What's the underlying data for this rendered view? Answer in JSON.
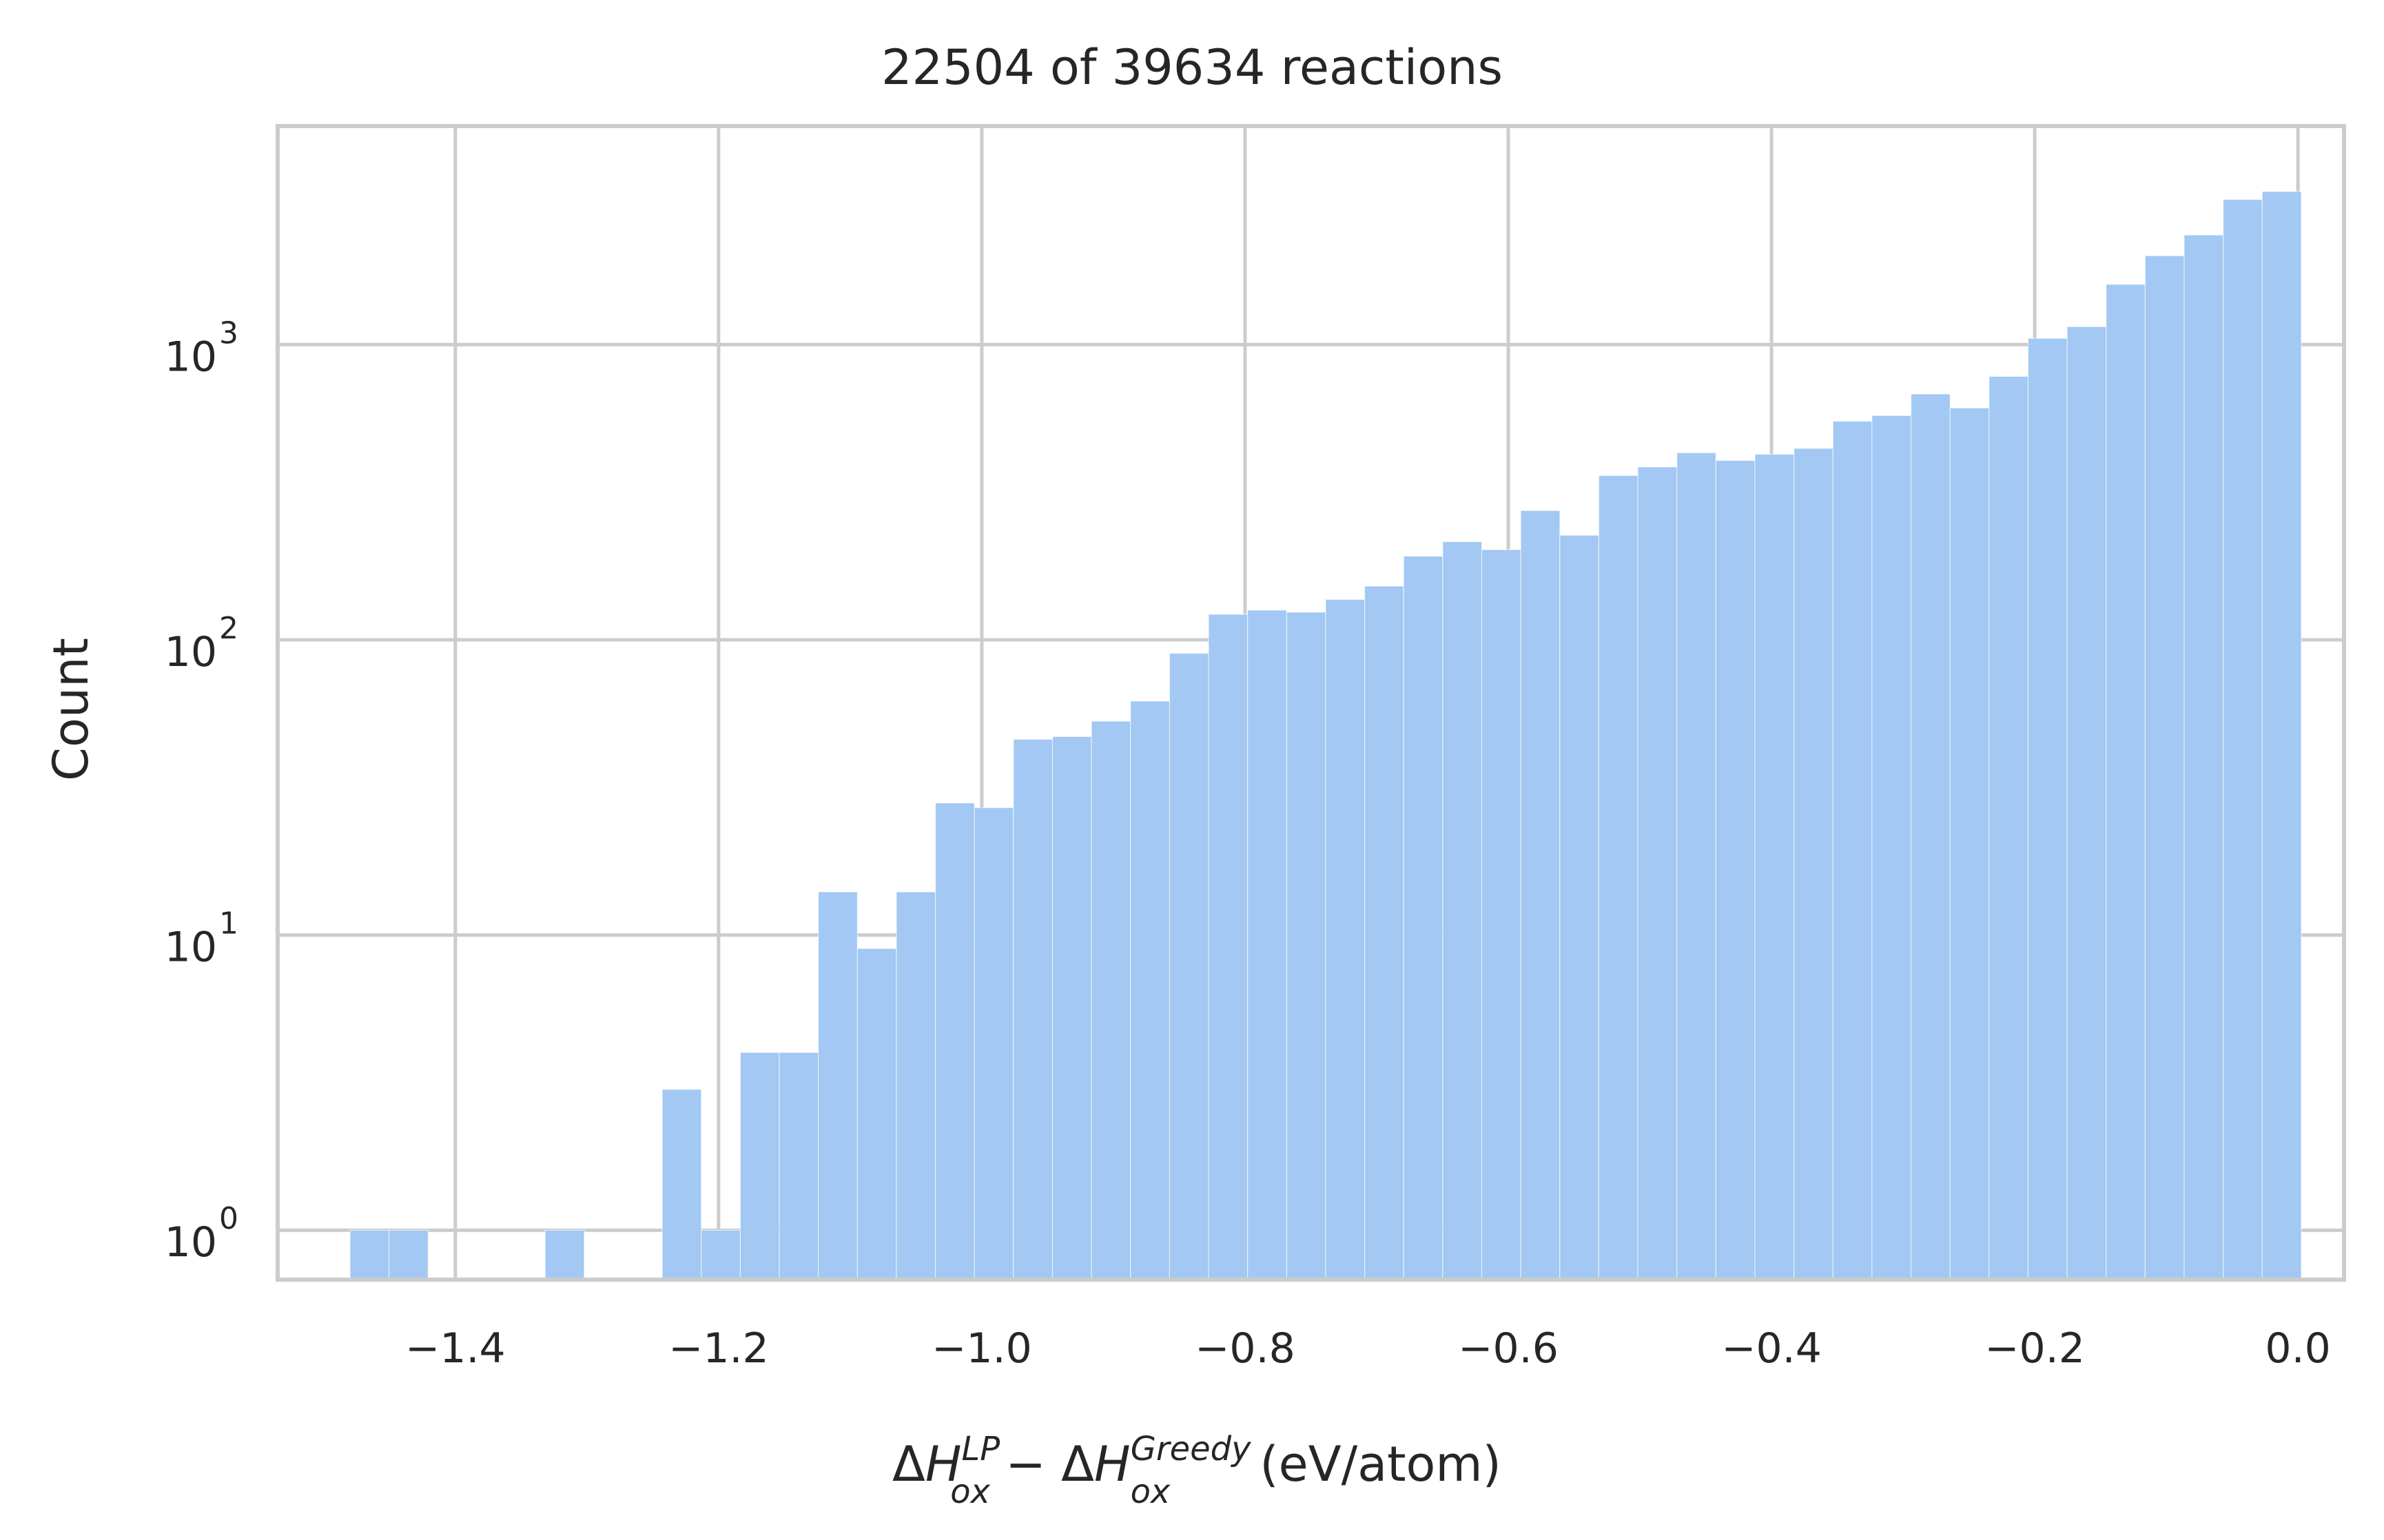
{
  "chart_data": {
    "type": "bar",
    "title": "22504 of 39634 reactions",
    "xlabel": "ΔH_ox^LP − ΔH_ox^Greedy (eV/atom)",
    "xlabel_parts": {
      "delta": "Δ",
      "H": "H",
      "sup_lp": "LP",
      "sub_ox": "ox",
      "minus": " − ",
      "sup_greedy": "Greedy",
      "unit": "(eV/atom)"
    },
    "ylabel": "Count",
    "y_scale": "log",
    "xlim": [
      -1.535,
      0.035
    ],
    "ylim": [
      0.68,
      5500
    ],
    "x_ticks": [
      -1.4,
      -1.2,
      -1.0,
      -0.8,
      -0.6,
      -0.4,
      -0.2,
      0.0
    ],
    "x_tick_labels": [
      "−1.4",
      "−1.2",
      "−1.0",
      "−0.8",
      "−0.6",
      "−0.4",
      "−0.2",
      "0.0"
    ],
    "y_ticks": [
      1,
      10,
      100,
      1000
    ],
    "y_tick_labels": [
      {
        "base": "10",
        "exp": "0"
      },
      {
        "base": "10",
        "exp": "1"
      },
      {
        "base": "10",
        "exp": "2"
      },
      {
        "base": "10",
        "exp": "3"
      }
    ],
    "grid": true,
    "bar_color": "#a2c8f3",
    "bin_start": -1.48,
    "bin_width": 0.02965,
    "values": [
      1,
      1,
      0,
      0,
      0,
      1,
      0,
      0,
      3,
      1,
      4,
      4,
      14,
      9,
      14,
      28,
      27,
      46,
      47,
      53,
      62,
      90,
      122,
      126,
      124,
      137,
      152,
      192,
      215,
      202,
      274,
      226,
      360,
      385,
      430,
      405,
      425,
      445,
      550,
      575,
      680,
      610,
      780,
      1050,
      1150,
      1600,
      2000,
      2350,
      3100,
      3300
    ]
  }
}
